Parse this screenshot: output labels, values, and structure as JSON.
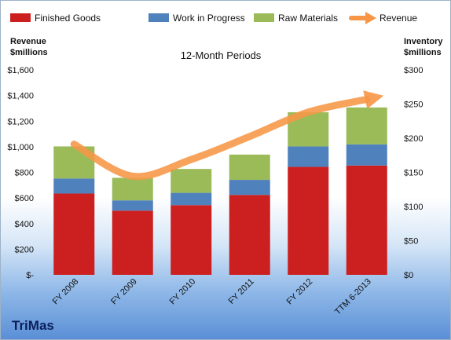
{
  "chart_data": {
    "type": "bar",
    "stacked": true,
    "title": "12-Month Periods",
    "categories": [
      "FY 2008",
      "FY 2009",
      "FY 2010",
      "FY 2011",
      "FY 2012",
      "TTM 6-2013"
    ],
    "y_left_label": "Revenue\n$millions",
    "y_right_label": "Inventory\n$millions",
    "y_left_ticks": [
      "$-",
      "$200",
      "$400",
      "$600",
      "$800",
      "$1,000",
      "$1,200",
      "$1,400",
      "$1,600"
    ],
    "y_right_ticks": [
      "$0",
      "$50",
      "$100",
      "$150",
      "$200",
      "$250",
      "$300"
    ],
    "ylim_left": [
      0,
      1600
    ],
    "ylim_right": [
      0,
      300
    ],
    "series": [
      {
        "name": "Finished Goods",
        "axis": "right",
        "color": "#cc1f1f",
        "values": [
          119,
          94,
          102,
          117,
          158,
          160
        ]
      },
      {
        "name": "Work in Progress",
        "axis": "right",
        "color": "#4f81bd",
        "values": [
          22,
          15,
          18,
          22,
          30,
          31
        ]
      },
      {
        "name": "Raw Materials",
        "axis": "right",
        "color": "#9bbb59",
        "values": [
          47,
          33,
          35,
          37,
          50,
          54
        ]
      }
    ],
    "line_series": {
      "name": "Revenue",
      "axis": "left",
      "color": "#f79646",
      "values": [
        1020,
        770,
        900,
        1080,
        1270,
        1370
      ]
    },
    "legend_position": "top",
    "grid": false
  },
  "company": "TriMas"
}
